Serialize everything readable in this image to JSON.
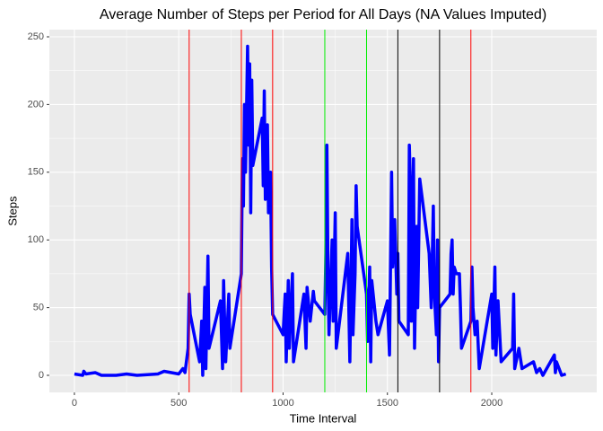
{
  "chart_data": {
    "type": "line",
    "title": "Average Number of Steps per Period for All Days (NA Values Imputed)",
    "x_label": "Time Interval",
    "y_label": "Steps",
    "xlim": [
      -120,
      2503
    ],
    "ylim": [
      -12.6,
      255.3
    ],
    "xticks": [
      0,
      500,
      1000,
      1500,
      2000
    ],
    "yticks": [
      0,
      50,
      100,
      150,
      200,
      250
    ],
    "grid": true,
    "vlines": [
      {
        "x": 550,
        "color": "#ff0000"
      },
      {
        "x": 800,
        "color": "#ff0000"
      },
      {
        "x": 950,
        "color": "#ff0000"
      },
      {
        "x": 1200,
        "color": "#00ee00"
      },
      {
        "x": 1400,
        "color": "#00ee00"
      },
      {
        "x": 1550,
        "color": "#000000"
      },
      {
        "x": 1750,
        "color": "#000000"
      },
      {
        "x": 1900,
        "color": "#ff0000"
      }
    ],
    "series": [
      {
        "color": "#0000ff",
        "x": [
          0,
          40,
          45,
          55,
          100,
          130,
          200,
          250,
          300,
          400,
          430,
          500,
          520,
          530,
          545,
          550,
          555,
          600,
          610,
          615,
          625,
          630,
          640,
          645,
          700,
          710,
          715,
          725,
          740,
          745,
          800,
          805,
          810,
          815,
          820,
          830,
          835,
          840,
          845,
          850,
          855,
          900,
          905,
          910,
          915,
          925,
          930,
          940,
          945,
          950,
          1000,
          1010,
          1015,
          1025,
          1030,
          1045,
          1050,
          1100,
          1110,
          1115,
          1130,
          1145,
          1150,
          1200,
          1205,
          1210,
          1215,
          1220,
          1235,
          1240,
          1250,
          1255,
          1310,
          1320,
          1330,
          1335,
          1345,
          1350,
          1355,
          1400,
          1405,
          1415,
          1420,
          1425,
          1445,
          1455,
          1500,
          1510,
          1520,
          1525,
          1535,
          1545,
          1550,
          1555,
          1600,
          1605,
          1610,
          1615,
          1625,
          1630,
          1640,
          1645,
          1655,
          1700,
          1710,
          1720,
          1725,
          1735,
          1740,
          1745,
          1750,
          1800,
          1805,
          1810,
          1815,
          1820,
          1830,
          1845,
          1850,
          1855,
          1900,
          1905,
          1910,
          1920,
          1930,
          1940,
          2000,
          2005,
          2015,
          2020,
          2030,
          2045,
          2100,
          2105,
          2110,
          2130,
          2145,
          2200,
          2215,
          2230,
          2245,
          2300,
          2305,
          2310,
          2330,
          2335,
          2355
        ],
        "values": [
          1,
          0,
          3,
          1,
          2,
          0,
          0,
          1,
          0,
          1,
          3,
          1,
          5,
          2,
          20,
          60,
          45,
          10,
          40,
          0,
          65,
          5,
          88,
          20,
          55,
          5,
          70,
          10,
          60,
          20,
          75,
          160,
          125,
          200,
          150,
          243,
          170,
          230,
          120,
          218,
          155,
          190,
          140,
          210,
          130,
          185,
          120,
          150,
          80,
          45,
          30,
          60,
          10,
          70,
          20,
          75,
          10,
          60,
          20,
          65,
          40,
          62,
          55,
          45,
          90,
          170,
          80,
          30,
          100,
          40,
          120,
          20,
          90,
          10,
          115,
          30,
          75,
          140,
          110,
          60,
          25,
          80,
          10,
          70,
          40,
          30,
          55,
          15,
          150,
          80,
          115,
          60,
          90,
          40,
          30,
          170,
          140,
          40,
          160,
          20,
          110,
          50,
          145,
          90,
          50,
          125,
          60,
          30,
          100,
          10,
          50,
          60,
          90,
          100,
          60,
          80,
          75,
          75,
          50,
          20,
          40,
          80,
          50,
          30,
          40,
          5,
          60,
          20,
          80,
          15,
          55,
          10,
          20,
          60,
          5,
          20,
          5,
          10,
          2,
          5,
          0,
          15,
          2,
          10,
          2,
          0,
          1
        ]
      }
    ]
  }
}
